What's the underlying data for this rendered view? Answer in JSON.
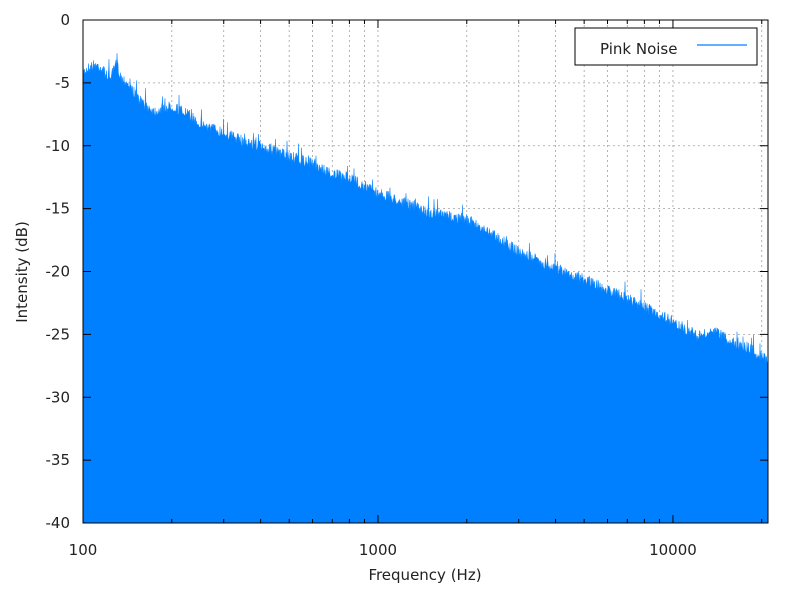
{
  "chart_data": {
    "type": "area",
    "xscale": "log",
    "xlabel": "Frequency (Hz)",
    "ylabel": "Intensity (dB)",
    "xlim": [
      100,
      21000
    ],
    "ylim": [
      -40,
      0
    ],
    "xticks": [
      100,
      1000,
      10000
    ],
    "xtick_labels": [
      "100",
      "1000",
      "10000"
    ],
    "yticks": [
      0,
      -5,
      -10,
      -15,
      -20,
      -25,
      -30,
      -35,
      -40
    ],
    "ytick_labels": [
      "0",
      "-5",
      "-10",
      "-15",
      "-20",
      "-25",
      "-30",
      "-35",
      "-40"
    ],
    "grid": true,
    "legend_position": "top-right",
    "series": [
      {
        "name": "Pink Noise",
        "color": "#0080ff",
        "x": [
          100,
          105,
          110,
          115,
          120,
          125,
          130,
          135,
          140,
          150,
          160,
          175,
          200,
          225,
          250,
          300,
          350,
          400,
          500,
          600,
          700,
          800,
          1000,
          1200,
          1500,
          2000,
          2500,
          3000,
          4000,
          5000,
          6000,
          7000,
          8000,
          10000,
          12000,
          14000,
          16000,
          18000,
          20000,
          21000
        ],
        "values": [
          -3.7,
          -3.3,
          -3.1,
          -3.3,
          -3.9,
          -4.0,
          -3.0,
          -4.2,
          -4.4,
          -5.5,
          -6.2,
          -6.8,
          -6.4,
          -7.0,
          -7.8,
          -8.5,
          -9.2,
          -9.6,
          -10.4,
          -11.0,
          -11.8,
          -12.1,
          -13.3,
          -14.0,
          -14.9,
          -15.4,
          -16.7,
          -18.0,
          -19.3,
          -20.2,
          -21.0,
          -21.7,
          -22.4,
          -23.5,
          -24.7,
          -24.4,
          -25.2,
          -25.6,
          -26.3,
          -26.5
        ]
      }
    ]
  }
}
